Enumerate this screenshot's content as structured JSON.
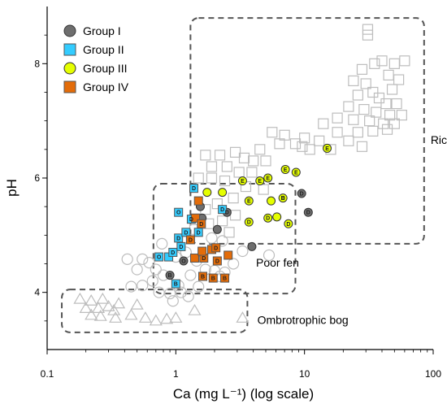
{
  "chart_data": {
    "type": "scatter",
    "title": "",
    "xlabel": "Ca (mg L⁻¹) (log scale)",
    "ylabel": "pH",
    "xscale": "log",
    "xlim": [
      0.1,
      100
    ],
    "ylim": [
      3.0,
      9.0
    ],
    "xticks": [
      {
        "value": 0.1,
        "label": "0.1"
      },
      {
        "value": 1,
        "label": "1"
      },
      {
        "value": 10,
        "label": "10"
      },
      {
        "value": 100,
        "label": "100"
      }
    ],
    "yticks": [
      {
        "value": 4,
        "label": "4"
      },
      {
        "value": 6,
        "label": "6"
      },
      {
        "value": 8,
        "label": "8"
      }
    ],
    "grid": false,
    "legend_position": "top-left",
    "regions": [
      {
        "label": "Rich fen",
        "x_range": [
          1.3,
          85
        ],
        "y_range": [
          4.85,
          8.8
        ]
      },
      {
        "label": "Poor fen",
        "x_range": [
          0.67,
          8.5
        ],
        "y_range": [
          3.98,
          5.9
        ]
      },
      {
        "label": "Ombrotrophic bog",
        "x_range": [
          0.13,
          3.6
        ],
        "y_range": [
          3.3,
          4.05
        ]
      }
    ],
    "series": [
      {
        "name": "Group I",
        "marker": "circle",
        "color": "#6e6e6e",
        "points": [
          [
            1.55,
            5.5
          ],
          [
            1.6,
            5.3
          ],
          [
            2.1,
            5.1
          ],
          [
            2.5,
            5.4
          ],
          [
            3.9,
            4.8
          ],
          [
            9.5,
            5.73
          ],
          [
            10.7,
            5.4
          ],
          [
            1.15,
            4.55
          ],
          [
            0.9,
            4.3
          ]
        ]
      },
      {
        "name": "Group II",
        "marker": "square",
        "color": "#33ccff",
        "points": [
          [
            1.0,
            4.15
          ],
          [
            0.88,
            4.62
          ],
          [
            0.74,
            4.62
          ],
          [
            0.95,
            4.7
          ],
          [
            1.1,
            4.8
          ],
          [
            1.05,
            4.95
          ],
          [
            1.2,
            5.05
          ],
          [
            1.5,
            5.05
          ],
          [
            1.32,
            5.28
          ],
          [
            1.05,
            5.4
          ],
          [
            1.38,
            5.82
          ],
          [
            2.3,
            5.45
          ]
        ]
      },
      {
        "name": "Group III",
        "marker": "circle",
        "color": "#e5ff00",
        "points": [
          [
            15,
            6.52
          ],
          [
            8.6,
            6.1
          ],
          [
            7.1,
            6.15
          ],
          [
            5.2,
            6.0
          ],
          [
            4.5,
            5.95
          ],
          [
            3.3,
            5.95
          ],
          [
            2.3,
            5.75
          ],
          [
            1.75,
            5.75
          ],
          [
            3.7,
            5.6
          ],
          [
            5.5,
            5.6
          ],
          [
            6.8,
            5.65
          ],
          [
            3.7,
            5.23
          ],
          [
            5.2,
            5.3
          ],
          [
            6.1,
            5.32
          ],
          [
            7.5,
            5.2
          ]
        ]
      },
      {
        "name": "Group IV",
        "marker": "square",
        "color": "#e36c09",
        "points": [
          [
            1.95,
            4.25
          ],
          [
            1.62,
            4.28
          ],
          [
            2.4,
            4.25
          ],
          [
            1.4,
            4.6
          ],
          [
            1.65,
            4.6
          ],
          [
            1.9,
            4.75
          ],
          [
            1.6,
            4.72
          ],
          [
            2.05,
            4.78
          ],
          [
            2.1,
            4.55
          ],
          [
            2.55,
            4.65
          ],
          [
            1.3,
            4.92
          ],
          [
            1.42,
            5.3
          ],
          [
            1.58,
            5.2
          ],
          [
            1.5,
            5.6
          ]
        ]
      },
      {
        "name": "",
        "marker": "open-square",
        "color": "#bdbdbd",
        "points": [
          [
            31,
            8.6
          ],
          [
            31,
            8.5
          ],
          [
            28,
            7.9
          ],
          [
            35,
            8.0
          ],
          [
            40,
            8.05
          ],
          [
            50,
            8.0
          ],
          [
            60,
            8.05
          ],
          [
            24,
            7.7
          ],
          [
            45,
            7.8
          ],
          [
            54,
            7.72
          ],
          [
            30,
            7.65
          ],
          [
            34,
            7.5
          ],
          [
            48,
            7.55
          ],
          [
            26,
            7.45
          ],
          [
            38,
            7.4
          ],
          [
            43,
            7.3
          ],
          [
            52,
            7.3
          ],
          [
            22,
            7.25
          ],
          [
            29,
            7.2
          ],
          [
            36,
            7.15
          ],
          [
            46,
            7.1
          ],
          [
            57,
            7.1
          ],
          [
            18,
            7.05
          ],
          [
            24,
            7.02
          ],
          [
            32,
            7.0
          ],
          [
            41,
            6.95
          ],
          [
            50,
            6.95
          ],
          [
            14,
            6.95
          ],
          [
            18,
            6.8
          ],
          [
            26,
            6.8
          ],
          [
            34,
            6.82
          ],
          [
            44,
            6.85
          ],
          [
            10,
            6.7
          ],
          [
            13,
            6.65
          ],
          [
            22,
            6.65
          ],
          [
            28,
            6.55
          ],
          [
            7,
            6.75
          ],
          [
            8.5,
            6.6
          ],
          [
            5.6,
            6.8
          ],
          [
            6.4,
            6.6
          ],
          [
            9.6,
            6.55
          ],
          [
            11,
            6.5
          ],
          [
            16,
            6.5
          ],
          [
            4.5,
            6.5
          ],
          [
            5,
            6.3
          ],
          [
            4,
            6.3
          ],
          [
            3.4,
            6.35
          ],
          [
            2.9,
            6.45
          ],
          [
            2.2,
            6.4
          ],
          [
            1.7,
            6.4
          ],
          [
            3.9,
            6.1
          ],
          [
            3.1,
            6.1
          ],
          [
            2.5,
            6.2
          ],
          [
            1.9,
            6.2
          ],
          [
            2.4,
            5.95
          ],
          [
            1.9,
            6.0
          ],
          [
            1.5,
            6.0
          ],
          [
            4.8,
            5.8
          ],
          [
            3.5,
            5.85
          ],
          [
            2.8,
            5.65
          ],
          [
            2.1,
            5.55
          ],
          [
            1.7,
            5.45
          ],
          [
            2.9,
            5.35
          ],
          [
            2.3,
            5.25
          ],
          [
            1.8,
            5.2
          ],
          [
            1.4,
            5.1
          ],
          [
            2.6,
            5.05
          ]
        ]
      },
      {
        "name": "",
        "marker": "open-circle",
        "color": "#bdbdbd",
        "points": [
          [
            0.42,
            4.58
          ],
          [
            0.55,
            4.58
          ],
          [
            0.62,
            4.52
          ],
          [
            0.5,
            4.4
          ],
          [
            0.7,
            4.4
          ],
          [
            0.8,
            4.3
          ],
          [
            0.66,
            4.2
          ],
          [
            0.55,
            4.12
          ],
          [
            0.45,
            4.1
          ],
          [
            0.74,
            4.0
          ],
          [
            0.9,
            3.98
          ],
          [
            1.1,
            4.0
          ],
          [
            1.25,
            3.93
          ],
          [
            0.95,
            3.85
          ],
          [
            1.05,
            4.12
          ],
          [
            1.3,
            4.3
          ],
          [
            1.7,
            4.4
          ],
          [
            2.0,
            4.38
          ],
          [
            2.4,
            4.35
          ],
          [
            1.5,
            4.1
          ],
          [
            2.2,
            4.28
          ],
          [
            2.8,
            4.5
          ],
          [
            3.3,
            4.72
          ],
          [
            5.3,
            4.65
          ],
          [
            1.9,
            4.95
          ],
          [
            1.0,
            4.62
          ],
          [
            0.78,
            4.85
          ],
          [
            1.2,
            4.7
          ],
          [
            1.45,
            4.55
          ],
          [
            2.3,
            4.9
          ]
        ]
      },
      {
        "name": "",
        "marker": "open-triangle",
        "color": "#bdbdbd",
        "points": [
          [
            0.18,
            3.88
          ],
          [
            0.2,
            3.72
          ],
          [
            0.22,
            3.85
          ],
          [
            0.25,
            3.72
          ],
          [
            0.27,
            3.88
          ],
          [
            0.3,
            3.75
          ],
          [
            0.33,
            3.68
          ],
          [
            0.36,
            3.8
          ],
          [
            0.26,
            3.58
          ],
          [
            0.34,
            3.55
          ],
          [
            0.45,
            3.6
          ],
          [
            0.5,
            3.78
          ],
          [
            0.58,
            3.55
          ],
          [
            0.7,
            3.5
          ],
          [
            0.85,
            3.53
          ],
          [
            1.0,
            3.55
          ],
          [
            1.4,
            3.68
          ],
          [
            3.3,
            3.55
          ],
          [
            0.22,
            3.6
          ]
        ]
      }
    ],
    "point_labels": [
      {
        "text": "E",
        "series": "Group III",
        "x": 15,
        "y": 6.52
      },
      {
        "text": "E",
        "series": "Group III",
        "x": 8.6,
        "y": 6.1
      },
      {
        "text": "E",
        "series": "Group III",
        "x": 7.1,
        "y": 6.15
      },
      {
        "text": "E",
        "series": "Group III",
        "x": 5.2,
        "y": 6.0
      },
      {
        "text": "E",
        "series": "Group III",
        "x": 4.5,
        "y": 5.95
      },
      {
        "text": "E",
        "series": "Group III",
        "x": 3.3,
        "y": 5.95
      },
      {
        "text": "E",
        "series": "Group III",
        "x": 3.7,
        "y": 5.6
      },
      {
        "text": "E",
        "series": "Group III",
        "x": 6.8,
        "y": 5.65
      },
      {
        "text": "D",
        "series": "Group III",
        "x": 5.2,
        "y": 5.3
      },
      {
        "text": "D",
        "series": "Group III",
        "x": 3.7,
        "y": 5.23
      },
      {
        "text": "D",
        "series": "Group III",
        "x": 7.5,
        "y": 5.2
      },
      {
        "text": "D",
        "series": "Group III",
        "x": 6.8,
        "y": 5.65
      },
      {
        "text": "D",
        "series": "Group II",
        "x": 1.38,
        "y": 5.82
      },
      {
        "text": "D",
        "series": "Group II",
        "x": 2.3,
        "y": 5.45
      },
      {
        "text": "D",
        "series": "Group II",
        "x": 1.32,
        "y": 5.28
      },
      {
        "text": "D",
        "series": "Group II",
        "x": 1.5,
        "y": 5.05
      },
      {
        "text": "D",
        "series": "Group II",
        "x": 1.2,
        "y": 5.05
      },
      {
        "text": "D",
        "series": "Group II",
        "x": 1.05,
        "y": 4.95
      },
      {
        "text": "D",
        "series": "Group II",
        "x": 0.95,
        "y": 4.7
      },
      {
        "text": "D",
        "series": "Group II",
        "x": 1.1,
        "y": 4.8
      },
      {
        "text": "D",
        "series": "Group IV",
        "x": 1.65,
        "y": 4.6
      },
      {
        "text": "D",
        "series": "Group IV",
        "x": 2.05,
        "y": 4.78
      },
      {
        "text": "D",
        "series": "Group IV",
        "x": 1.3,
        "y": 4.92
      },
      {
        "text": "D",
        "series": "Group IV",
        "x": 1.58,
        "y": 5.2
      },
      {
        "text": "D",
        "series": "Group IV",
        "x": 2.1,
        "y": 4.55
      },
      {
        "text": "D",
        "series": "Group I",
        "x": 2.5,
        "y": 5.4
      },
      {
        "text": "D",
        "series": "Group I",
        "x": 10.7,
        "y": 5.4
      },
      {
        "text": "D",
        "series": "Group I",
        "x": 9.5,
        "y": 5.73
      },
      {
        "text": "B",
        "series": "Group IV",
        "x": 2.4,
        "y": 4.25
      },
      {
        "text": "B",
        "series": "Group IV",
        "x": 1.95,
        "y": 4.25
      },
      {
        "text": "B",
        "series": "Group IV",
        "x": 1.62,
        "y": 4.28
      },
      {
        "text": "B",
        "series": "Group II",
        "x": 1.0,
        "y": 4.15
      },
      {
        "text": "B",
        "series": "Group I",
        "x": 0.9,
        "y": 4.3
      },
      {
        "text": "O",
        "series": "Group II",
        "x": 0.74,
        "y": 4.62
      },
      {
        "text": "O",
        "series": "Group II",
        "x": 1.05,
        "y": 5.4
      },
      {
        "text": "O",
        "series": "Group I",
        "x": 1.15,
        "y": 4.55
      }
    ]
  }
}
